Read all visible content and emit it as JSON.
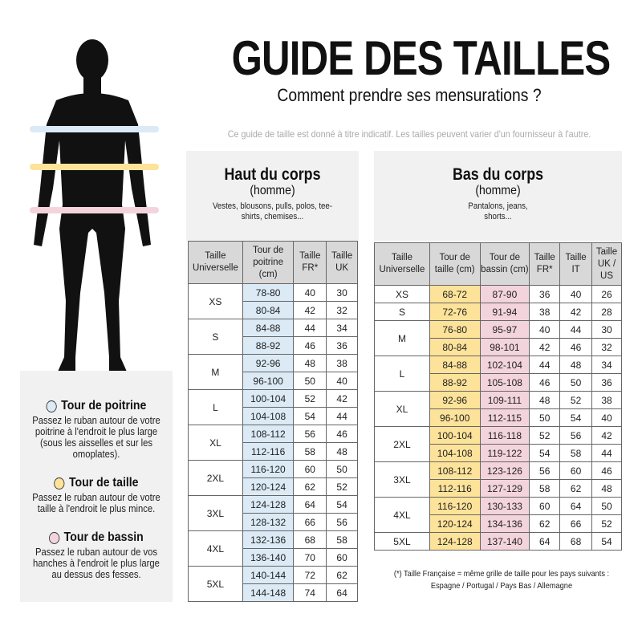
{
  "header": {
    "title": "GUIDE DES TAILLES",
    "subtitle": "Comment prendre ses mensurations ?",
    "disclaimer": "Ce guide de taille est donné à titre indicatif. Les tailles peuvent varier d'un fournisseur à l'autre."
  },
  "colors": {
    "chest": "#dbeaf5",
    "waist": "#fde39a",
    "hips": "#f3d4dd"
  },
  "figure": {
    "icon": "man-silhouette-icon"
  },
  "legend": [
    {
      "title": "Tour de poitrine",
      "desc": "Passez le ruban autour de votre poitrine à l'endroit le plus large (sous les aisselles et sur les omoplates)."
    },
    {
      "title": "Tour de taille",
      "desc": "Passez le ruban autour de votre taille à l'endroit le plus mince."
    },
    {
      "title": "Tour de bassin",
      "desc": "Passez le ruban autour de vos hanches à l'endroit le plus large au dessus des fesses."
    }
  ],
  "top": {
    "title": "Haut du corps",
    "sub": "(homme)",
    "desc": "Vestes, blousons, pulls, polos, tee-shirts, chemises...",
    "headers": [
      "Taille Universelle",
      "Tour de poitrine (cm)",
      "Taille FR*",
      "Taille UK"
    ],
    "groups": [
      {
        "size": "XS",
        "rows": [
          [
            "78-80",
            "40",
            "30"
          ],
          [
            "80-84",
            "42",
            "32"
          ]
        ]
      },
      {
        "size": "S",
        "rows": [
          [
            "84-88",
            "44",
            "34"
          ],
          [
            "88-92",
            "46",
            "36"
          ]
        ]
      },
      {
        "size": "M",
        "rows": [
          [
            "92-96",
            "48",
            "38"
          ],
          [
            "96-100",
            "50",
            "40"
          ]
        ]
      },
      {
        "size": "L",
        "rows": [
          [
            "100-104",
            "52",
            "42"
          ],
          [
            "104-108",
            "54",
            "44"
          ]
        ]
      },
      {
        "size": "XL",
        "rows": [
          [
            "108-112",
            "56",
            "46"
          ],
          [
            "112-116",
            "58",
            "48"
          ]
        ]
      },
      {
        "size": "2XL",
        "rows": [
          [
            "116-120",
            "60",
            "50"
          ],
          [
            "120-124",
            "62",
            "52"
          ]
        ]
      },
      {
        "size": "3XL",
        "rows": [
          [
            "124-128",
            "64",
            "54"
          ],
          [
            "128-132",
            "66",
            "56"
          ]
        ]
      },
      {
        "size": "4XL",
        "rows": [
          [
            "132-136",
            "68",
            "58"
          ],
          [
            "136-140",
            "70",
            "60"
          ]
        ]
      },
      {
        "size": "5XL",
        "rows": [
          [
            "140-144",
            "72",
            "62"
          ],
          [
            "144-148",
            "74",
            "64"
          ]
        ]
      }
    ]
  },
  "bottom": {
    "title": "Bas du corps",
    "sub": "(homme)",
    "desc": "Pantalons, jeans, shorts...",
    "headers": [
      "Taille Universelle",
      "Tour de taille (cm)",
      "Tour de bassin (cm)",
      "Taille FR*",
      "Taille IT",
      "Taille UK / US"
    ],
    "groups": [
      {
        "size": "XS",
        "rows": [
          [
            "68-72",
            "87-90",
            "36",
            "40",
            "26"
          ]
        ]
      },
      {
        "size": "S",
        "rows": [
          [
            "72-76",
            "91-94",
            "38",
            "42",
            "28"
          ]
        ]
      },
      {
        "size": "M",
        "rows": [
          [
            "76-80",
            "95-97",
            "40",
            "44",
            "30"
          ],
          [
            "80-84",
            "98-101",
            "42",
            "46",
            "32"
          ]
        ]
      },
      {
        "size": "L",
        "rows": [
          [
            "84-88",
            "102-104",
            "44",
            "48",
            "34"
          ],
          [
            "88-92",
            "105-108",
            "46",
            "50",
            "36"
          ]
        ]
      },
      {
        "size": "XL",
        "rows": [
          [
            "92-96",
            "109-111",
            "48",
            "52",
            "38"
          ],
          [
            "96-100",
            "112-115",
            "50",
            "54",
            "40"
          ]
        ]
      },
      {
        "size": "2XL",
        "rows": [
          [
            "100-104",
            "116-118",
            "52",
            "56",
            "42"
          ],
          [
            "104-108",
            "119-122",
            "54",
            "58",
            "44"
          ]
        ]
      },
      {
        "size": "3XL",
        "rows": [
          [
            "108-112",
            "123-126",
            "56",
            "60",
            "46"
          ],
          [
            "112-116",
            "127-129",
            "58",
            "62",
            "48"
          ]
        ]
      },
      {
        "size": "4XL",
        "rows": [
          [
            "116-120",
            "130-133",
            "60",
            "64",
            "50"
          ],
          [
            "120-124",
            "134-136",
            "62",
            "66",
            "52"
          ]
        ]
      },
      {
        "size": "5XL",
        "rows": [
          [
            "124-128",
            "137-140",
            "64",
            "68",
            "54"
          ]
        ]
      }
    ]
  },
  "footnote": [
    "(*) Taille Française = même grille de taille pour les pays suivants :",
    "Espagne / Portugal / Pays Bas / Allemagne"
  ]
}
